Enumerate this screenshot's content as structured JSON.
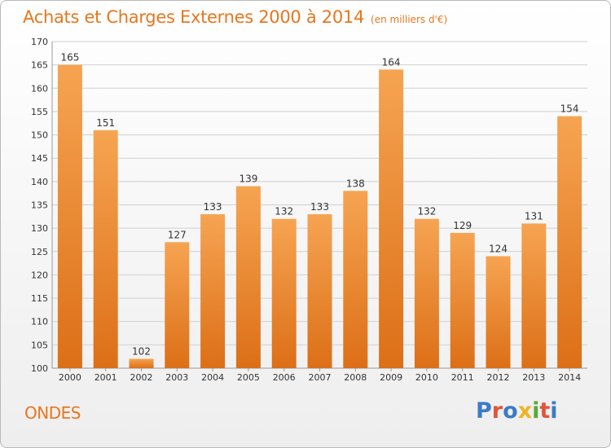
{
  "title": "Achats et Charges Externes 2000 à 2014",
  "subtitle": "(en milliers d'€)",
  "commune": "ONDES",
  "logo_text": "Proxiti",
  "colors": {
    "bar_top": "#f6a452",
    "bar_bottom": "#dc6f17",
    "title": "#e8761e",
    "grid": "#cfcfcf",
    "axis_text": "#333333",
    "logo": [
      "#3a7bc8",
      "#e2543b",
      "#3a7bc8",
      "#f0b323",
      "#5aa83a",
      "#e2543b",
      "#3a7bc8"
    ]
  },
  "chart_data": {
    "type": "bar",
    "title": "Achats et Charges Externes 2000 à 2014",
    "subtitle": "(en milliers d'€)",
    "xlabel": "",
    "ylabel": "",
    "categories": [
      "2000",
      "2001",
      "2002",
      "2003",
      "2004",
      "2005",
      "2006",
      "2007",
      "2008",
      "2009",
      "2010",
      "2011",
      "2012",
      "2013",
      "2014"
    ],
    "values": [
      165,
      151,
      102,
      127,
      133,
      139,
      132,
      133,
      138,
      164,
      132,
      129,
      124,
      131,
      154
    ],
    "ylim": [
      100,
      170
    ],
    "yticks": [
      100,
      105,
      110,
      115,
      120,
      125,
      130,
      135,
      140,
      145,
      150,
      155,
      160,
      165,
      170
    ],
    "grid": true,
    "data_labels": true
  }
}
